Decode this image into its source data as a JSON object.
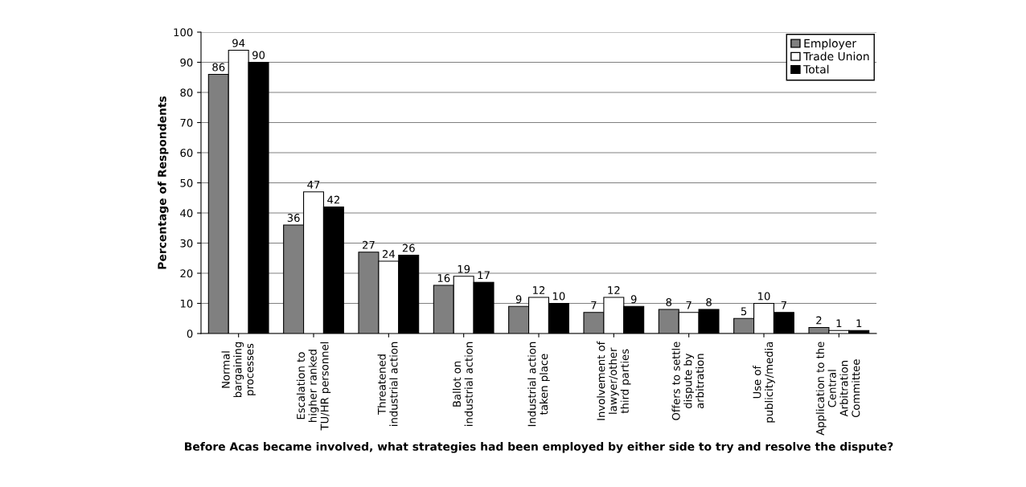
{
  "chart_data": {
    "type": "bar",
    "ylabel": "Percentage of Respondents",
    "xlabel": "Before Acas became involved, what strategies had been employed by either side to try and resolve the dispute?",
    "categories": [
      "Normal\nbargaining\nprocesses",
      "Escalation to\nhigher ranked\nTU/HR personnel",
      "Threatened\nindustrial action",
      "Ballot on\nindustrial action",
      "Industrial action\ntaken place",
      "Involvement of\nlawyer/other\nthird parties",
      "Offers to settle\ndispute by\narbitration",
      "Use of\npublicity/media",
      "Application to the\nCentral\nArbitration\nCommittee"
    ],
    "series": [
      {
        "name": "Employer",
        "color": "#808080",
        "values": [
          86,
          36,
          27,
          16,
          9,
          7,
          8,
          5,
          2
        ]
      },
      {
        "name": "Trade Union",
        "color": "#ffffff",
        "values": [
          94,
          47,
          24,
          19,
          12,
          12,
          7,
          10,
          1
        ]
      },
      {
        "name": "Total",
        "color": "#000000",
        "values": [
          90,
          42,
          26,
          17,
          10,
          9,
          8,
          7,
          1
        ]
      }
    ],
    "ylim": [
      0,
      100
    ],
    "yticks": [
      0,
      10,
      20,
      30,
      40,
      50,
      60,
      70,
      80,
      90,
      100
    ],
    "grid": "y",
    "legend": "top right",
    "data_labels": true
  }
}
